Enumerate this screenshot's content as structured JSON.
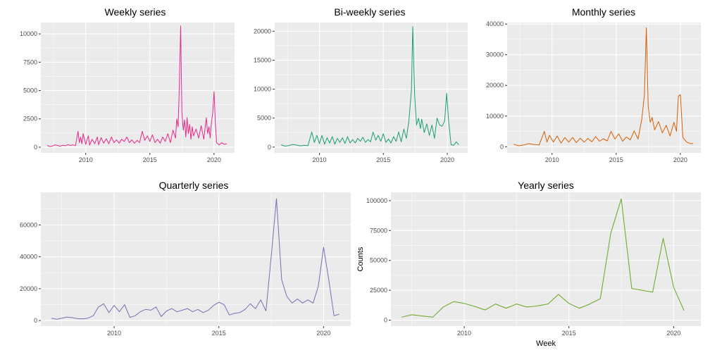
{
  "chart_data": [
    {
      "type": "line",
      "title": "Weekly series",
      "xlabel": "",
      "ylabel": "",
      "color": "#e7298a",
      "xlim": [
        2006.5,
        2021.6
      ],
      "ylim": [
        -500,
        11000
      ],
      "xticks": [
        2010,
        2015,
        2020
      ],
      "yticks": [
        0,
        2500,
        5000,
        7500,
        10000
      ],
      "grid": true,
      "x": [
        2007.0,
        2007.2,
        2007.4,
        2007.6,
        2007.8,
        2008.0,
        2008.2,
        2008.4,
        2008.6,
        2008.8,
        2009.0,
        2009.2,
        2009.4,
        2009.5,
        2009.6,
        2009.7,
        2009.8,
        2010.0,
        2010.2,
        2010.3,
        2010.5,
        2010.7,
        2010.9,
        2011.0,
        2011.2,
        2011.4,
        2011.6,
        2011.8,
        2012.0,
        2012.2,
        2012.4,
        2012.6,
        2012.8,
        2013.0,
        2013.2,
        2013.4,
        2013.6,
        2013.8,
        2014.0,
        2014.2,
        2014.4,
        2014.6,
        2014.8,
        2015.0,
        2015.2,
        2015.4,
        2015.6,
        2015.8,
        2016.0,
        2016.2,
        2016.4,
        2016.6,
        2016.8,
        2017.0,
        2017.1,
        2017.2,
        2017.3,
        2017.4,
        2017.5,
        2017.6,
        2017.7,
        2017.8,
        2017.9,
        2018.0,
        2018.1,
        2018.2,
        2018.3,
        2018.4,
        2018.6,
        2018.8,
        2019.0,
        2019.2,
        2019.4,
        2019.5,
        2019.6,
        2019.7,
        2019.8,
        2019.9,
        2020.0,
        2020.1,
        2020.2,
        2020.3,
        2020.4,
        2020.6,
        2020.8,
        2021.0
      ],
      "y": [
        150,
        60,
        100,
        200,
        150,
        80,
        180,
        130,
        220,
        160,
        200,
        140,
        1400,
        400,
        900,
        300,
        1200,
        250,
        1000,
        180,
        700,
        300,
        900,
        220,
        850,
        350,
        750,
        300,
        900,
        400,
        650,
        350,
        700,
        500,
        900,
        400,
        650,
        350,
        600,
        400,
        1400,
        600,
        1000,
        500,
        1100,
        400,
        700,
        350,
        900,
        500,
        1200,
        400,
        1500,
        800,
        2500,
        1800,
        5500,
        10700,
        3000,
        1500,
        2400,
        900,
        2600,
        1200,
        2000,
        700,
        1800,
        1000,
        1600,
        800,
        1900,
        700,
        2600,
        1200,
        1800,
        800,
        2200,
        3000,
        4900,
        2200,
        400,
        300,
        200,
        400,
        250,
        300
      ]
    },
    {
      "type": "line",
      "title": "Bi-weekly series",
      "xlabel": "",
      "ylabel": "",
      "color": "#1b9e77",
      "xlim": [
        2006.5,
        2021.6
      ],
      "ylim": [
        -1000,
        21500
      ],
      "xticks": [
        2010,
        2015,
        2020
      ],
      "yticks": [
        0,
        5000,
        10000,
        15000,
        20000
      ],
      "grid": true,
      "x": [
        2007.0,
        2007.3,
        2007.6,
        2007.9,
        2008.2,
        2008.5,
        2008.8,
        2009.1,
        2009.4,
        2009.6,
        2009.8,
        2010.0,
        2010.2,
        2010.4,
        2010.6,
        2010.8,
        2011.0,
        2011.2,
        2011.4,
        2011.6,
        2011.8,
        2012.0,
        2012.2,
        2012.4,
        2012.6,
        2012.8,
        2013.0,
        2013.2,
        2013.4,
        2013.6,
        2013.8,
        2014.0,
        2014.2,
        2014.4,
        2014.6,
        2014.8,
        2015.0,
        2015.2,
        2015.4,
        2015.6,
        2015.8,
        2016.0,
        2016.2,
        2016.4,
        2016.6,
        2016.8,
        2017.0,
        2017.2,
        2017.3,
        2017.45,
        2017.6,
        2017.75,
        2017.9,
        2018.0,
        2018.2,
        2018.4,
        2018.6,
        2018.8,
        2019.0,
        2019.2,
        2019.4,
        2019.6,
        2019.8,
        2019.95,
        2020.1,
        2020.3,
        2020.5,
        2020.7,
        2020.9
      ],
      "y": [
        400,
        150,
        250,
        450,
        350,
        200,
        300,
        250,
        2600,
        800,
        2000,
        600,
        2000,
        500,
        1600,
        700,
        1800,
        500,
        1500,
        800,
        1600,
        600,
        1800,
        700,
        1300,
        700,
        1500,
        1000,
        1700,
        800,
        1300,
        900,
        2600,
        1200,
        2000,
        1000,
        2300,
        800,
        1400,
        700,
        1800,
        1000,
        2600,
        900,
        3100,
        1500,
        4500,
        10000,
        20800,
        9000,
        3800,
        5000,
        3200,
        4800,
        2500,
        4000,
        2000,
        3800,
        1500,
        5000,
        3800,
        3600,
        4500,
        9300,
        4700,
        400,
        300,
        900,
        400
      ]
    },
    {
      "type": "line",
      "title": "Monthly series",
      "xlabel": "",
      "ylabel": "",
      "color": "#d95f02",
      "xlim": [
        2006.5,
        2021.6
      ],
      "ylim": [
        -2000,
        40500
      ],
      "xticks": [
        2010,
        2015,
        2020
      ],
      "yticks": [
        0,
        10000,
        20000,
        30000,
        40000
      ],
      "grid": true,
      "x": [
        2007.0,
        2007.4,
        2007.8,
        2008.2,
        2008.6,
        2009.0,
        2009.4,
        2009.6,
        2009.8,
        2010.1,
        2010.4,
        2010.7,
        2011.0,
        2011.3,
        2011.6,
        2011.9,
        2012.2,
        2012.5,
        2012.8,
        2013.1,
        2013.4,
        2013.7,
        2014.0,
        2014.3,
        2014.6,
        2014.9,
        2015.2,
        2015.5,
        2015.8,
        2016.1,
        2016.4,
        2016.7,
        2017.0,
        2017.2,
        2017.35,
        2017.5,
        2017.65,
        2017.8,
        2018.0,
        2018.3,
        2018.6,
        2018.9,
        2019.2,
        2019.5,
        2019.7,
        2019.85,
        2020.0,
        2020.2,
        2020.5,
        2020.8,
        2021.0
      ],
      "y": [
        800,
        300,
        600,
        1000,
        700,
        600,
        5000,
        1500,
        3700,
        1500,
        3500,
        1200,
        3000,
        1500,
        3000,
        1300,
        2800,
        1500,
        2700,
        1600,
        3300,
        1800,
        2600,
        1900,
        5000,
        2500,
        4200,
        1800,
        3200,
        2200,
        5200,
        2500,
        9000,
        17000,
        38800,
        13000,
        8000,
        9500,
        5500,
        8200,
        4500,
        7000,
        3500,
        8000,
        5000,
        16500,
        17000,
        3000,
        1500,
        1000,
        1000
      ]
    },
    {
      "type": "line",
      "title": "Quarterly series",
      "xlabel": "",
      "ylabel": "",
      "color": "#7570b3",
      "xlim": [
        2006.5,
        2021.3
      ],
      "ylim": [
        -3500,
        80500
      ],
      "xticks": [
        2010,
        2015,
        2020
      ],
      "yticks": [
        0,
        20000,
        40000,
        60000
      ],
      "grid": true,
      "x": [
        2007.0,
        2007.25,
        2007.5,
        2007.75,
        2008.0,
        2008.25,
        2008.5,
        2008.75,
        2009.0,
        2009.25,
        2009.5,
        2009.75,
        2010.0,
        2010.25,
        2010.5,
        2010.75,
        2011.0,
        2011.25,
        2011.5,
        2011.75,
        2012.0,
        2012.25,
        2012.5,
        2012.75,
        2013.0,
        2013.25,
        2013.5,
        2013.75,
        2014.0,
        2014.25,
        2014.5,
        2014.75,
        2015.0,
        2015.25,
        2015.5,
        2015.75,
        2016.0,
        2016.25,
        2016.5,
        2016.75,
        2017.0,
        2017.25,
        2017.5,
        2017.75,
        2018.0,
        2018.25,
        2018.5,
        2018.75,
        2019.0,
        2019.25,
        2019.5,
        2019.75,
        2020.0,
        2020.25,
        2020.5,
        2020.75
      ],
      "y": [
        1500,
        800,
        1500,
        2200,
        1800,
        1200,
        1000,
        1500,
        3000,
        8500,
        10500,
        5000,
        9500,
        5500,
        10000,
        2000,
        3000,
        5500,
        7000,
        6500,
        8500,
        2500,
        6000,
        7500,
        5500,
        6500,
        7500,
        5500,
        7000,
        5000,
        6500,
        9500,
        11500,
        10000,
        3500,
        4500,
        5000,
        7000,
        10500,
        7500,
        13000,
        6000,
        40000,
        76500,
        25500,
        15000,
        11000,
        13500,
        11000,
        13000,
        11000,
        21500,
        46000,
        25500,
        3000,
        4000
      ]
    },
    {
      "type": "line",
      "title": "Yearly series",
      "xlabel": "Week",
      "ylabel": "Counts",
      "color": "#66a61e",
      "xlim": [
        2006.5,
        2021.3
      ],
      "ylim": [
        -5000,
        107000
      ],
      "xticks": [
        2010,
        2015,
        2020
      ],
      "yticks": [
        0,
        25000,
        50000,
        75000,
        100000
      ],
      "grid": true,
      "x": [
        2007.0,
        2007.5,
        2008.0,
        2008.5,
        2009.0,
        2009.5,
        2010.0,
        2010.5,
        2011.0,
        2011.5,
        2012.0,
        2012.5,
        2013.0,
        2013.5,
        2014.0,
        2014.5,
        2015.0,
        2015.5,
        2016.0,
        2016.5,
        2017.0,
        2017.5,
        2018.0,
        2018.5,
        2019.0,
        2019.5,
        2020.0,
        2020.5
      ],
      "y": [
        2500,
        4500,
        3500,
        2500,
        11000,
        15500,
        14000,
        11500,
        8500,
        13500,
        10000,
        13500,
        11000,
        12000,
        13500,
        21500,
        14000,
        10000,
        13500,
        18000,
        73000,
        101500,
        26500,
        25000,
        23500,
        68500,
        27500,
        8000
      ]
    }
  ]
}
